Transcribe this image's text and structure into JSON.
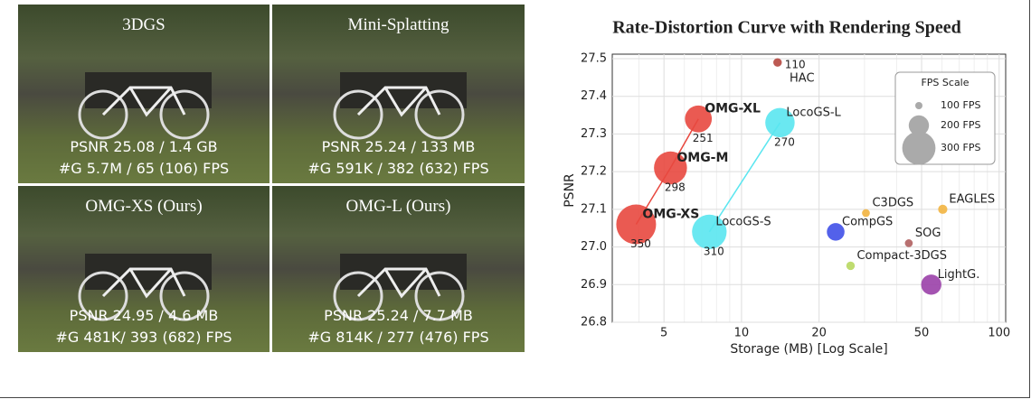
{
  "panels": [
    {
      "title": "3DGS",
      "line1": "PSNR 25.08 / 1.4 GB",
      "line2": "#G 5.7M / 65 (106) FPS"
    },
    {
      "title": "Mini-Splatting",
      "line1": "PSNR 25.24 / 133 MB",
      "line2": "#G 591K / 382 (632) FPS"
    },
    {
      "title": "OMG-XS (Ours)",
      "line1": "PSNR 24.95 / 4.6 MB",
      "line2": "#G 481K/ 393 (682) FPS"
    },
    {
      "title": "OMG-L (Ours)",
      "line1": "PSNR 25.24 / 7.7 MB",
      "line2": "#G 814K / 277 (476) FPS"
    }
  ],
  "chart_data": {
    "type": "bubble",
    "title": "Rate-Distortion Curve with Rendering Speed",
    "x_label": "Storage (MB) [Log Scale]",
    "y_label": "PSNR",
    "x_log": true,
    "grid": true,
    "xlim": [
      3.15,
      106
    ],
    "xticks": [
      5,
      10,
      20,
      50,
      100
    ],
    "minor_xticks": [
      4,
      6,
      7,
      8,
      9,
      30,
      40,
      60,
      70,
      80,
      90
    ],
    "ylim": [
      26.8,
      27.5
    ],
    "yticks": [
      26.8,
      26.9,
      27.0,
      27.1,
      27.2,
      27.3,
      27.4,
      27.5
    ],
    "legend": {
      "title": "FPS Scale",
      "position": "upper right",
      "items": [
        {
          "value": 100,
          "label": "100 FPS"
        },
        {
          "value": 200,
          "label": "200 FPS"
        },
        {
          "value": 300,
          "label": "300 FPS"
        }
      ]
    },
    "series": [
      {
        "color": "#b5473f",
        "labels": [
          "HAC"
        ],
        "x": [
          13.8
        ],
        "y": [
          27.49
        ],
        "size": [
          110
        ],
        "show_size_labels": true
      },
      {
        "color": "#e8483f",
        "line": true,
        "bold": true,
        "labels": [
          "OMG-XL",
          "OMG-M",
          "OMG-XS"
        ],
        "x": [
          6.8,
          5.3,
          3.9
        ],
        "y": [
          27.34,
          27.21,
          27.06
        ],
        "size": [
          251,
          298,
          350
        ],
        "show_size_labels": true
      },
      {
        "color": "#5ae6f0",
        "line": true,
        "labels": [
          "LocoGS-L",
          "LocoGS-S"
        ],
        "x": [
          14.1,
          7.5
        ],
        "y": [
          27.33,
          27.04
        ],
        "size": [
          270,
          310
        ],
        "show_size_labels": true
      },
      {
        "color": "#4050e8",
        "labels": [
          "CompGS"
        ],
        "x": [
          23.2
        ],
        "y": [
          27.04
        ],
        "size": [
          180
        ]
      },
      {
        "color": "#f2b440",
        "labels": [
          "C3DGS"
        ],
        "x": [
          30.4
        ],
        "y": [
          27.09
        ],
        "size": [
          105
        ]
      },
      {
        "color": "#f2b440",
        "labels": [
          "EAGLES"
        ],
        "x": [
          60.4
        ],
        "y": [
          27.1
        ],
        "size": [
          115
        ]
      },
      {
        "color": "#b06060",
        "labels": [
          "SOG"
        ],
        "x": [
          44.6
        ],
        "y": [
          27.01
        ],
        "size": [
          105
        ]
      },
      {
        "color": "#b8d860",
        "labels": [
          "Compact-3DGS"
        ],
        "x": [
          26.5
        ],
        "y": [
          26.95
        ],
        "size": [
          110
        ]
      },
      {
        "color": "#9a40a8",
        "labels": [
          "LightG."
        ],
        "x": [
          54.5
        ],
        "y": [
          26.9
        ],
        "size": [
          200
        ]
      }
    ]
  }
}
